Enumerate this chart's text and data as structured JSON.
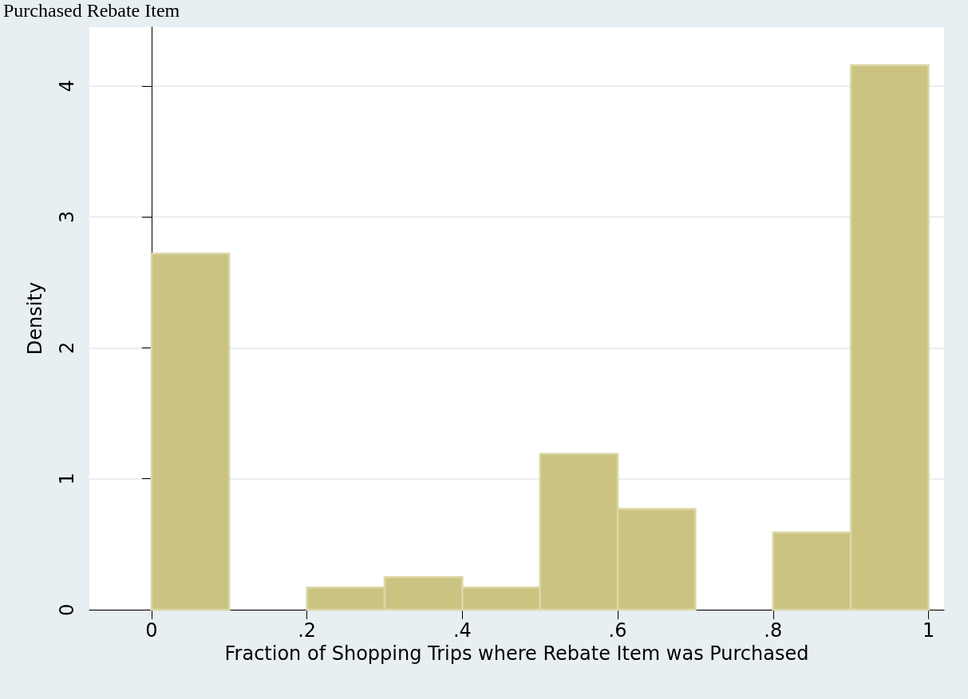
{
  "chart_data": {
    "type": "histogram",
    "title": "Purchased Rebate Item",
    "xlabel": "Fraction of Shopping Trips where Rebate Item was Purchased",
    "ylabel": "Density",
    "bins": [
      0,
      0.1,
      0.2,
      0.3,
      0.4,
      0.5,
      0.6,
      0.7,
      0.8,
      0.9,
      1
    ],
    "values": [
      2.72,
      0,
      0.17,
      0.25,
      0.17,
      1.19,
      0.77,
      0,
      0.59,
      4.16
    ],
    "color": "#cbc382",
    "xlim": [
      -0.08,
      1.02
    ],
    "xticks": [
      0,
      {
        "value": 0.2,
        "label": ".2"
      },
      {
        "value": 0.4,
        "label": ".4"
      },
      {
        "value": 0.6,
        "label": ".6"
      },
      {
        "value": 0.8,
        "label": ".8"
      },
      1
    ],
    "ylim": [
      0,
      4.45
    ],
    "yticks": [
      0,
      1,
      2,
      3,
      4
    ],
    "grid": "y"
  }
}
